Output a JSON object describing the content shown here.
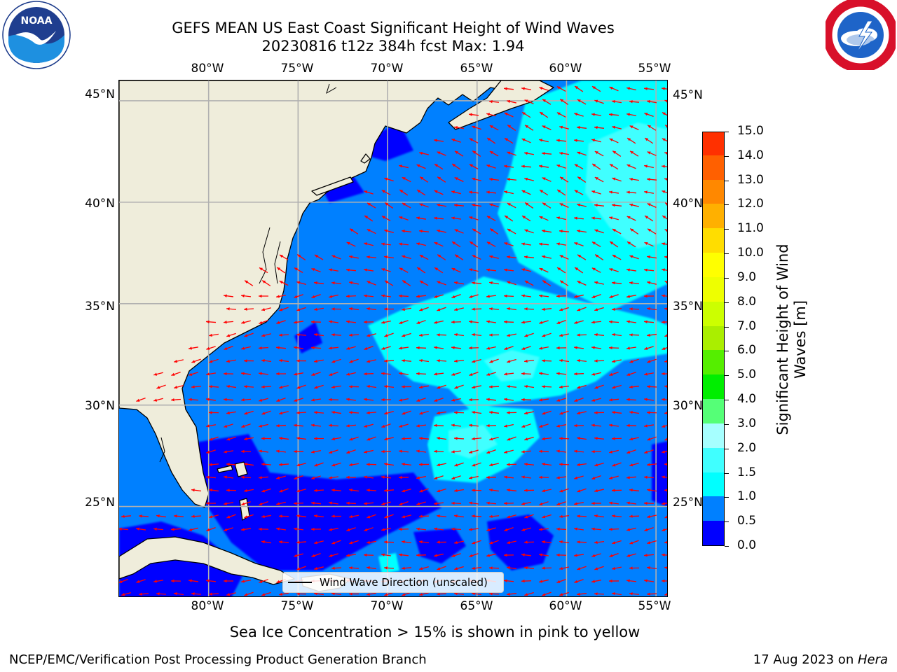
{
  "title_line1": "GEFS MEAN US East Coast Significant Height of Wind Waves",
  "title_line2": "20230816 t12z 384h fcst   Max: 1.94",
  "logos": {
    "left": "noaa-logo",
    "right": "nws-logo"
  },
  "map": {
    "lon_ticks": [
      "80°W",
      "75°W",
      "70°W",
      "65°W",
      "60°W",
      "55°W"
    ],
    "lat_ticks": [
      "45°N",
      "40°N",
      "35°N",
      "30°N",
      "25°N"
    ],
    "extent": {
      "lon": [
        -85,
        -54.3
      ],
      "lat": [
        20.5,
        46
      ]
    },
    "land_color": "#efeddb",
    "arrow_color": "#ff0000",
    "grid": true
  },
  "colorbar": {
    "label_line1": "Significant Height of Wind",
    "label_line2": "Waves [m]",
    "ticks": [
      "0.0",
      "0.5",
      "1.0",
      "1.5",
      "2.0",
      "3.0",
      "4.0",
      "5.0",
      "6.0",
      "7.0",
      "8.0",
      "9.0",
      "10.0",
      "11.0",
      "12.0",
      "13.0",
      "14.0",
      "15.0"
    ],
    "colors": [
      "#0000ff",
      "#0080ff",
      "#00ffff",
      "#40ffff",
      "#a6ffff",
      "#55ff77",
      "#00ee00",
      "#55ee00",
      "#aaee00",
      "#ccff00",
      "#eeff00",
      "#ffff00",
      "#ffdd00",
      "#ffb000",
      "#ff8800",
      "#ff6000",
      "#ff3000",
      "#ff0000"
    ]
  },
  "legend": {
    "label": "Wind Wave Direction (unscaled)"
  },
  "caption": "Sea Ice Concentration > 15% is shown in pink to yellow",
  "footer": {
    "left": "NCEP/EMC/Verification Post Processing Product Generation Branch",
    "right_date": "17 Aug 2023 on ",
    "right_host": "Hera"
  }
}
